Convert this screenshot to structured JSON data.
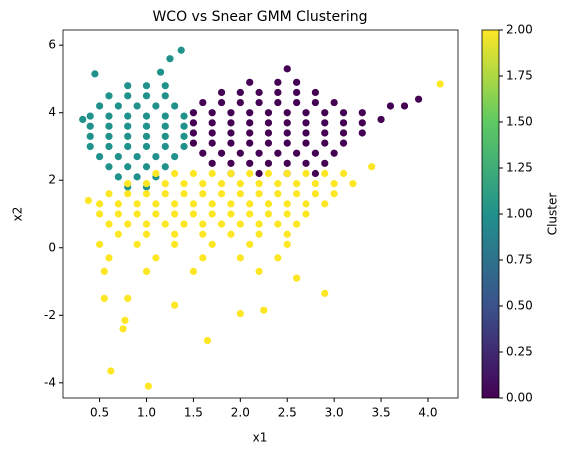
{
  "chart_data": {
    "type": "scatter",
    "title": "WCO vs Snear GMM Clustering",
    "x_label": "x1",
    "y_label": "x2",
    "colorbar_label": "Cluster",
    "colormap": [
      "#440154",
      "#3b528b",
      "#21918c",
      "#5ec962",
      "#fde725"
    ],
    "clim": [
      0,
      2
    ],
    "cticks": [
      {
        "value": 0,
        "label": "0.00"
      },
      0.25,
      {
        "value": 0.5,
        "label": "0.50"
      },
      0.75,
      {
        "value": 1,
        "label": "1.00"
      },
      1.25,
      {
        "value": 1.5,
        "label": "1.50"
      },
      1.75,
      {
        "value": 2,
        "label": "2.00"
      }
    ],
    "xlim": [
      0.11,
      4.32
    ],
    "ylim": [
      -4.45,
      6.45
    ],
    "xticks": [
      0.5,
      {
        "value": 1,
        "label": "1.0"
      },
      1.5,
      {
        "value": 2,
        "label": "2.0"
      },
      2.5,
      {
        "value": 3,
        "label": "3.0"
      },
      3.5,
      {
        "value": 4,
        "label": "4.0"
      }
    ],
    "yticks": [
      -4,
      -2,
      0,
      2,
      4,
      6
    ],
    "series": [
      {
        "cluster": 0,
        "x": [
          2.1,
          2.4,
          2.6,
          1.8,
          2.0,
          2.2,
          2.4,
          2.6,
          2.8,
          1.6,
          1.8,
          2.0,
          2.2,
          2.4,
          2.6,
          2.8,
          3.0,
          1.5,
          1.7,
          1.9,
          2.1,
          2.3,
          2.5,
          2.7,
          2.9,
          3.1,
          3.3,
          1.5,
          1.7,
          1.9,
          2.1,
          2.3,
          2.5,
          2.7,
          2.9,
          3.1,
          3.3,
          1.5,
          1.7,
          1.9,
          2.1,
          2.3,
          2.5,
          2.7,
          2.9,
          3.1,
          3.3,
          1.5,
          1.7,
          1.9,
          2.1,
          2.3,
          2.5,
          2.7,
          2.9,
          3.1,
          1.6,
          1.8,
          2.0,
          2.2,
          2.4,
          2.6,
          2.8,
          3.0,
          1.7,
          1.9,
          2.1,
          2.3,
          2.5,
          2.7,
          2.9,
          1.9,
          2.2,
          2.5,
          2.8,
          3.6,
          3.75,
          3.9,
          3.5,
          2.5
        ],
        "y": [
          4.9,
          4.9,
          4.9,
          4.6,
          4.6,
          4.6,
          4.6,
          4.6,
          4.6,
          4.3,
          4.3,
          4.3,
          4.3,
          4.3,
          4.3,
          4.3,
          4.3,
          4.0,
          4.0,
          4.0,
          4.0,
          4.0,
          4.0,
          4.0,
          4.0,
          4.0,
          4.0,
          3.7,
          3.7,
          3.7,
          3.7,
          3.7,
          3.7,
          3.7,
          3.7,
          3.7,
          3.7,
          3.4,
          3.4,
          3.4,
          3.4,
          3.4,
          3.4,
          3.4,
          3.4,
          3.4,
          3.4,
          3.1,
          3.1,
          3.1,
          3.1,
          3.1,
          3.1,
          3.1,
          3.1,
          3.1,
          2.8,
          2.8,
          2.8,
          2.8,
          2.8,
          2.8,
          2.8,
          2.8,
          2.5,
          2.5,
          2.5,
          2.5,
          2.5,
          2.5,
          2.5,
          2.2,
          2.2,
          2.2,
          2.2,
          4.2,
          4.2,
          4.4,
          3.8,
          5.3
        ]
      },
      {
        "cluster": 1,
        "x": [
          0.8,
          1.0,
          1.2,
          0.6,
          0.8,
          1.0,
          1.2,
          0.5,
          0.7,
          0.9,
          1.1,
          1.3,
          0.4,
          0.6,
          0.8,
          1.0,
          1.2,
          1.4,
          0.4,
          0.6,
          0.8,
          1.0,
          1.2,
          1.4,
          0.4,
          0.6,
          0.8,
          1.0,
          1.2,
          1.4,
          0.4,
          0.6,
          0.8,
          1.0,
          1.2,
          1.4,
          0.5,
          0.7,
          0.9,
          1.1,
          1.3,
          0.6,
          0.8,
          1.0,
          1.2,
          0.7,
          0.9,
          1.1,
          0.8,
          1.0,
          1.37,
          1.25,
          0.45,
          0.32,
          1.15
        ],
        "y": [
          4.8,
          4.8,
          4.8,
          4.5,
          4.5,
          4.5,
          4.5,
          4.2,
          4.2,
          4.2,
          4.2,
          4.2,
          3.9,
          3.9,
          3.9,
          3.9,
          3.9,
          3.9,
          3.6,
          3.6,
          3.6,
          3.6,
          3.6,
          3.6,
          3.3,
          3.3,
          3.3,
          3.3,
          3.3,
          3.3,
          3.0,
          3.0,
          3.0,
          3.0,
          3.0,
          3.0,
          2.7,
          2.7,
          2.7,
          2.7,
          2.7,
          2.4,
          2.4,
          2.4,
          2.4,
          2.1,
          2.1,
          2.1,
          1.8,
          1.8,
          5.85,
          5.6,
          5.15,
          3.8,
          5.2
        ]
      },
      {
        "cluster": 2,
        "x": [
          1.1,
          1.3,
          1.5,
          1.7,
          1.9,
          2.1,
          2.3,
          2.5,
          2.7,
          2.9,
          3.1,
          0.8,
          1.0,
          1.2,
          1.4,
          1.6,
          1.8,
          2.0,
          2.2,
          2.4,
          2.6,
          2.8,
          3.0,
          3.2,
          0.6,
          0.8,
          1.0,
          1.2,
          1.4,
          1.6,
          1.8,
          2.0,
          2.2,
          2.4,
          2.6,
          2.8,
          3.0,
          0.5,
          0.7,
          0.9,
          1.1,
          1.3,
          1.5,
          1.7,
          1.9,
          2.1,
          2.3,
          2.5,
          2.7,
          2.9,
          0.5,
          0.7,
          0.9,
          1.1,
          1.3,
          1.5,
          1.7,
          1.9,
          2.1,
          2.3,
          2.5,
          2.7,
          0.6,
          0.8,
          1.0,
          1.2,
          1.4,
          1.6,
          1.8,
          2.0,
          2.2,
          2.4,
          2.6,
          0.7,
          1.0,
          1.3,
          1.6,
          1.9,
          2.2,
          2.5,
          0.5,
          0.9,
          1.3,
          1.7,
          2.1,
          2.5,
          0.6,
          1.1,
          1.6,
          2.0,
          2.4,
          0.55,
          1.0,
          1.5,
          2.2,
          0.62,
          1.02,
          0.75,
          0.77,
          1.65,
          2.0,
          2.25,
          2.9,
          1.3,
          4.13,
          0.55,
          0.8,
          3.4,
          0.38,
          2.6
        ],
        "y": [
          2.2,
          2.2,
          2.2,
          2.2,
          2.2,
          2.2,
          2.2,
          2.2,
          2.2,
          2.2,
          2.2,
          1.9,
          1.9,
          1.9,
          1.9,
          1.9,
          1.9,
          1.9,
          1.9,
          1.9,
          1.9,
          1.9,
          1.9,
          1.9,
          1.6,
          1.6,
          1.6,
          1.6,
          1.6,
          1.6,
          1.6,
          1.6,
          1.6,
          1.6,
          1.6,
          1.6,
          1.6,
          1.3,
          1.3,
          1.3,
          1.3,
          1.3,
          1.3,
          1.3,
          1.3,
          1.3,
          1.3,
          1.3,
          1.3,
          1.3,
          1.0,
          1.0,
          1.0,
          1.0,
          1.0,
          1.0,
          1.0,
          1.0,
          1.0,
          1.0,
          1.0,
          1.0,
          0.7,
          0.7,
          0.7,
          0.7,
          0.7,
          0.7,
          0.7,
          0.7,
          0.7,
          0.7,
          0.7,
          0.4,
          0.4,
          0.4,
          0.4,
          0.4,
          0.4,
          0.4,
          0.1,
          0.1,
          0.1,
          0.1,
          0.1,
          0.1,
          -0.3,
          -0.3,
          -0.3,
          -0.3,
          -0.3,
          -0.7,
          -0.7,
          -0.7,
          -0.7,
          -3.65,
          -4.1,
          -2.4,
          -2.15,
          -2.75,
          -1.95,
          -1.85,
          -1.35,
          -1.7,
          4.85,
          -1.5,
          -1.5,
          2.4,
          1.4,
          -0.9
        ]
      }
    ]
  }
}
